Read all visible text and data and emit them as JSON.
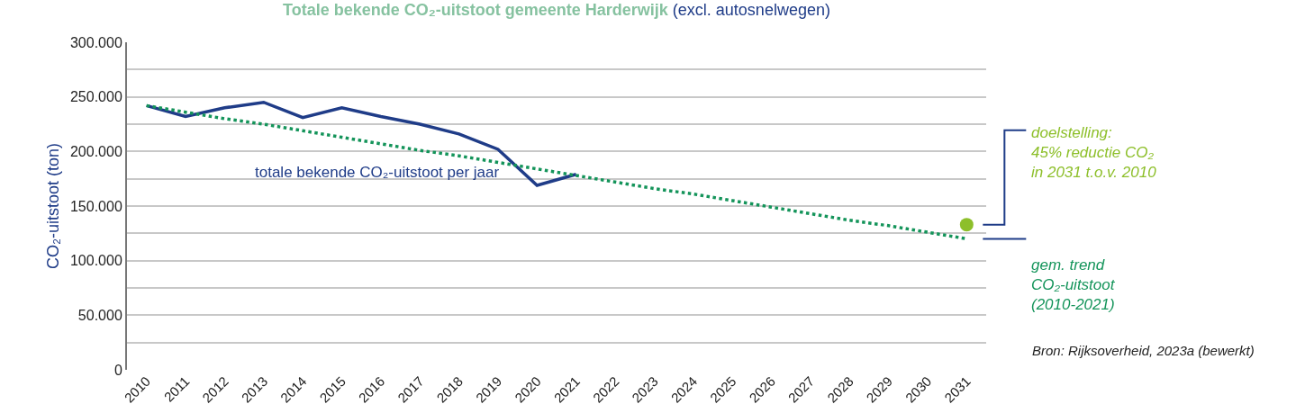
{
  "chart_data": {
    "type": "line",
    "title": "Totale bekende CO₂-uitstoot gemeente Harderwijk",
    "subtitle": "(excl. autosnelwegen)",
    "ylabel": "CO₂-uitstoot (ton)",
    "x": [
      2010,
      2011,
      2012,
      2013,
      2014,
      2015,
      2016,
      2017,
      2018,
      2019,
      2020,
      2021,
      2022,
      2023,
      2024,
      2025,
      2026,
      2027,
      2028,
      2029,
      2030,
      2031
    ],
    "xlim": [
      2009.5,
      2031.5
    ],
    "xticks": [
      2010,
      2011,
      2012,
      2013,
      2014,
      2015,
      2016,
      2017,
      2018,
      2019,
      2020,
      2021,
      2022,
      2023,
      2024,
      2025,
      2026,
      2027,
      2028,
      2029,
      2030,
      2031
    ],
    "ylim": [
      0,
      300000
    ],
    "yticks": [
      {
        "value": 0,
        "label": "0"
      },
      {
        "value": 25000,
        "label": null
      },
      {
        "value": 50000,
        "label": "50.000"
      },
      {
        "value": 75000,
        "label": null
      },
      {
        "value": 100000,
        "label": "100.000"
      },
      {
        "value": 125000,
        "label": null
      },
      {
        "value": 150000,
        "label": "150.000"
      },
      {
        "value": 175000,
        "label": null
      },
      {
        "value": 200000,
        "label": "200.000"
      },
      {
        "value": 225000,
        "label": null
      },
      {
        "value": 250000,
        "label": "250.000"
      },
      {
        "value": 275000,
        "label": null
      },
      {
        "value": 300000,
        "label": "300.000"
      }
    ],
    "grid": "y",
    "legend": false,
    "series": [
      {
        "name": "totale bekende CO₂-uitstoot per jaar",
        "color": "#1f3c88",
        "line_style": "solid",
        "values": [
          242000,
          232000,
          240000,
          245000,
          231000,
          240000,
          232000,
          225000,
          216000,
          202000,
          169000,
          179000,
          null,
          null,
          null,
          null,
          null,
          null,
          null,
          null,
          null,
          null
        ]
      },
      {
        "name": "gem. trend\nCO₂-uitstoot\n(2010-2021)",
        "color": "#14945a",
        "line_style": "dotted",
        "values": [
          242000,
          236000,
          230000,
          225000,
          219000,
          213000,
          207000,
          201000,
          196000,
          190000,
          184000,
          178000,
          172000,
          166000,
          161000,
          155000,
          149000,
          143000,
          137000,
          132000,
          126000,
          120000
        ]
      },
      {
        "name": "doelstelling:\n45% reductie CO₂\nin 2031 t.o.v. 2010",
        "type": "scatter",
        "marker": "circle",
        "color": "#8dbf2a",
        "values": [
          null,
          null,
          null,
          null,
          null,
          null,
          null,
          null,
          null,
          null,
          null,
          null,
          null,
          null,
          null,
          null,
          null,
          null,
          null,
          null,
          null,
          133000
        ]
      }
    ],
    "annotations": [
      "Bron: Rijksoverheid, 2023a (bewerkt)"
    ]
  }
}
